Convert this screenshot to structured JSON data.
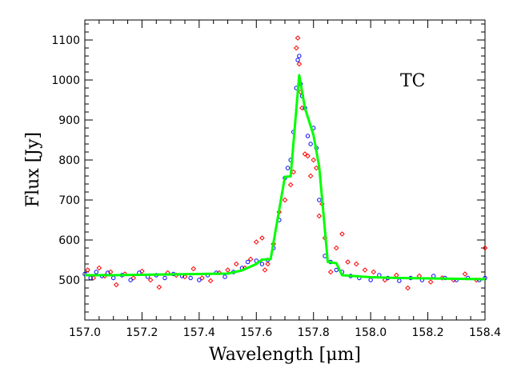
{
  "chart_data": {
    "type": "scatter",
    "title": "",
    "xlabel": "Wavelength [μm]",
    "ylabel": "Flux [Jy]",
    "xlim": [
      157.0,
      158.4
    ],
    "ylim": [
      400,
      1150
    ],
    "xticks": [
      157.0,
      157.2,
      157.4,
      157.6,
      157.8,
      158.0,
      158.2,
      158.4
    ],
    "xtick_labels": [
      "157.0",
      "157.2",
      "157.4",
      "157.6",
      "157.8",
      "158.0",
      "158.2",
      "158.4"
    ],
    "yticks": [
      500,
      600,
      700,
      800,
      900,
      1000,
      1100
    ],
    "ytick_labels": [
      "500",
      "600",
      "700",
      "800",
      "900",
      "1000",
      "1100"
    ],
    "annotation": "TC",
    "colors": {
      "series_red": "#ff0000",
      "series_blue": "#0000ff",
      "fit": "#00ff00",
      "axes": "#000000"
    },
    "fit_line": {
      "name": "fit",
      "x": [
        157.0,
        157.1,
        157.2,
        157.3,
        157.4,
        157.5,
        157.55,
        157.6,
        157.62,
        157.65,
        157.7,
        157.72,
        157.75,
        157.77,
        157.8,
        157.82,
        157.85,
        157.88,
        157.9,
        158.0,
        158.1,
        158.2,
        158.3,
        158.4
      ],
      "y": [
        512,
        512,
        513,
        514,
        515,
        516,
        524,
        540,
        551,
        552,
        758,
        759,
        1012,
        930,
        862,
        783,
        545,
        542,
        512,
        507,
        505,
        504,
        503,
        502
      ]
    },
    "series": [
      {
        "name": "red",
        "marker": "diamond-open",
        "x": [
          157.01,
          157.03,
          157.05,
          157.07,
          157.09,
          157.11,
          157.14,
          157.17,
          157.2,
          157.23,
          157.26,
          157.29,
          157.32,
          157.35,
          157.38,
          157.41,
          157.44,
          157.47,
          157.5,
          157.53,
          157.56,
          157.58,
          157.6,
          157.62,
          157.63,
          157.64,
          157.66,
          157.68,
          157.7,
          157.72,
          157.73,
          157.74,
          157.745,
          157.75,
          157.755,
          157.76,
          157.77,
          157.78,
          157.79,
          157.8,
          157.81,
          157.82,
          157.83,
          157.84,
          157.86,
          157.88,
          157.9,
          157.92,
          157.95,
          157.98,
          158.01,
          158.05,
          158.09,
          158.13,
          158.17,
          158.21,
          158.25,
          158.29,
          158.33,
          158.37,
          158.4
        ],
        "y": [
          525,
          505,
          530,
          510,
          520,
          488,
          515,
          505,
          522,
          500,
          482,
          518,
          512,
          508,
          528,
          505,
          498,
          518,
          525,
          540,
          530,
          552,
          595,
          605,
          525,
          540,
          590,
          670,
          700,
          738,
          770,
          1080,
          1105,
          1040,
          970,
          930,
          815,
          810,
          760,
          800,
          780,
          660,
          690,
          605,
          520,
          580,
          615,
          545,
          540,
          525,
          520,
          500,
          512,
          480,
          510,
          495,
          505,
          500,
          515,
          500,
          580
        ]
      },
      {
        "name": "blue",
        "marker": "circle-open",
        "x": [
          157.0,
          157.02,
          157.04,
          157.06,
          157.08,
          157.1,
          157.13,
          157.16,
          157.19,
          157.22,
          157.25,
          157.28,
          157.31,
          157.34,
          157.37,
          157.4,
          157.43,
          157.46,
          157.49,
          157.52,
          157.55,
          157.57,
          157.6,
          157.62,
          157.64,
          157.66,
          157.68,
          157.7,
          157.71,
          157.72,
          157.73,
          157.74,
          157.745,
          157.75,
          157.755,
          157.76,
          157.77,
          157.78,
          157.79,
          157.8,
          157.81,
          157.82,
          157.84,
          157.86,
          157.88,
          157.9,
          157.93,
          157.96,
          158.0,
          158.03,
          158.06,
          158.1,
          158.14,
          158.18,
          158.22,
          158.26,
          158.3,
          158.34,
          158.38,
          158.4
        ],
        "y": [
          515,
          505,
          520,
          510,
          518,
          505,
          512,
          500,
          518,
          508,
          512,
          505,
          515,
          510,
          505,
          500,
          512,
          518,
          508,
          520,
          530,
          545,
          548,
          540,
          550,
          580,
          650,
          755,
          780,
          800,
          870,
          980,
          1050,
          1060,
          990,
          960,
          930,
          860,
          840,
          880,
          830,
          700,
          560,
          545,
          525,
          520,
          510,
          505,
          500,
          512,
          505,
          498,
          505,
          500,
          510,
          505,
          500,
          505,
          500,
          505
        ]
      }
    ]
  }
}
